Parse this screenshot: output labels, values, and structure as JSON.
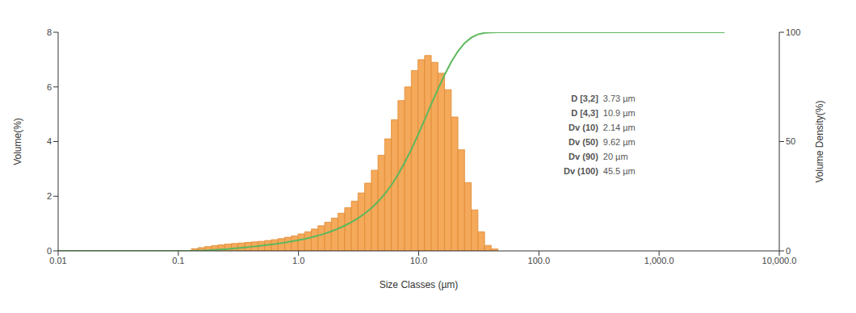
{
  "chart_data": {
    "type": "histogram",
    "x_label": "Size Classes (µm)",
    "y_label": "Volume(%)",
    "y2_label": "Volume Density(%)",
    "log": "x",
    "grid": false,
    "color": "#f4a95b",
    "bins": [
      0.1285,
      0.146,
      0.1659,
      0.1884,
      0.2141,
      0.2432,
      0.2763,
      0.314,
      0.3567,
      0.4053,
      0.4605,
      0.5231,
      0.5943,
      0.6752,
      0.7674,
      0.8718,
      0.9904,
      1.125,
      1.278,
      1.452,
      1.65,
      1.875,
      2.131,
      2.421,
      2.75,
      3.125,
      3.549,
      4.034,
      4.583,
      5.208,
      5.916,
      6.721,
      7.637,
      8.677,
      9.858,
      11.2,
      12.72,
      14.46,
      16.42,
      18.66,
      21.2,
      24.09,
      27.37,
      31.09,
      35.33,
      40.14,
      45.6
    ],
    "values": [
      0.08,
      0.12,
      0.16,
      0.19,
      0.22,
      0.25,
      0.27,
      0.29,
      0.31,
      0.33,
      0.35,
      0.38,
      0.41,
      0.45,
      0.5,
      0.55,
      0.62,
      0.7,
      0.8,
      0.92,
      1.05,
      1.2,
      1.38,
      1.58,
      1.82,
      2.12,
      2.48,
      2.95,
      3.5,
      4.1,
      4.8,
      5.5,
      6.0,
      6.6,
      7.0,
      7.15,
      6.9,
      6.5,
      5.9,
      4.9,
      3.7,
      2.5,
      1.5,
      0.7,
      0.2,
      0.07
    ],
    "series": [
      {
        "type": "line",
        "axis": "y2",
        "color": "#5cb85c",
        "x": [
          0.01,
          0.1285,
          0.146,
          0.1659,
          0.1884,
          0.2141,
          0.2432,
          0.2763,
          0.314,
          0.3567,
          0.4053,
          0.4605,
          0.5231,
          0.5943,
          0.6752,
          0.7674,
          0.8718,
          0.9904,
          1.125,
          1.278,
          1.452,
          1.65,
          1.875,
          2.131,
          2.421,
          2.75,
          3.125,
          3.549,
          4.034,
          4.583,
          5.208,
          5.916,
          6.721,
          7.637,
          8.677,
          9.858,
          11.2,
          12.72,
          14.46,
          16.42,
          18.66,
          21.2,
          24.09,
          27.37,
          31.09,
          35.33,
          40.14,
          45.6,
          3500
        ],
        "values": [
          0,
          0,
          0.08,
          0.2,
          0.36,
          0.55,
          0.77,
          1.02,
          1.29,
          1.58,
          1.89,
          2.22,
          2.57,
          2.95,
          3.36,
          3.81,
          4.31,
          4.86,
          5.48,
          6.18,
          6.98,
          7.9,
          8.95,
          10.15,
          11.53,
          13.11,
          14.93,
          17.05,
          19.53,
          22.48,
          25.98,
          30.08,
          34.88,
          40.38,
          46.38,
          52.98,
          59.98,
          67.13,
          74.03,
          80.53,
          86.43,
          91.33,
          95.03,
          97.53,
          99.03,
          99.73,
          99.93,
          100,
          100
        ]
      }
    ],
    "xlim": [
      0.01,
      10000
    ],
    "xticks": [
      {
        "value": 0.01,
        "label": "0.01"
      },
      {
        "value": 0.1,
        "label": "0.1"
      },
      {
        "value": 1,
        "label": "1.0"
      },
      {
        "value": 10,
        "label": "10.0"
      },
      {
        "value": 100,
        "label": "100.0"
      },
      {
        "value": 1000,
        "label": "1,000.0"
      },
      {
        "value": 10000,
        "label": "10,000.0"
      }
    ],
    "ylim": [
      0,
      8
    ],
    "yticks": [
      0,
      2,
      4,
      6,
      8
    ],
    "y2lim": [
      0,
      100
    ],
    "y2ticks": [
      0,
      50,
      100
    ],
    "annotations": [
      {
        "label": "D [3,2]",
        "text": "3.73 µm"
      },
      {
        "label": "D [4,3]",
        "text": "10.9 µm"
      },
      {
        "label": "Dv (10)",
        "text": "2.14 µm"
      },
      {
        "label": "Dv (50)",
        "text": "9.62 µm"
      },
      {
        "label": "Dv (90)",
        "text": "20 µm"
      },
      {
        "label": "Dv (100)",
        "text": "45.5 µm"
      }
    ]
  }
}
